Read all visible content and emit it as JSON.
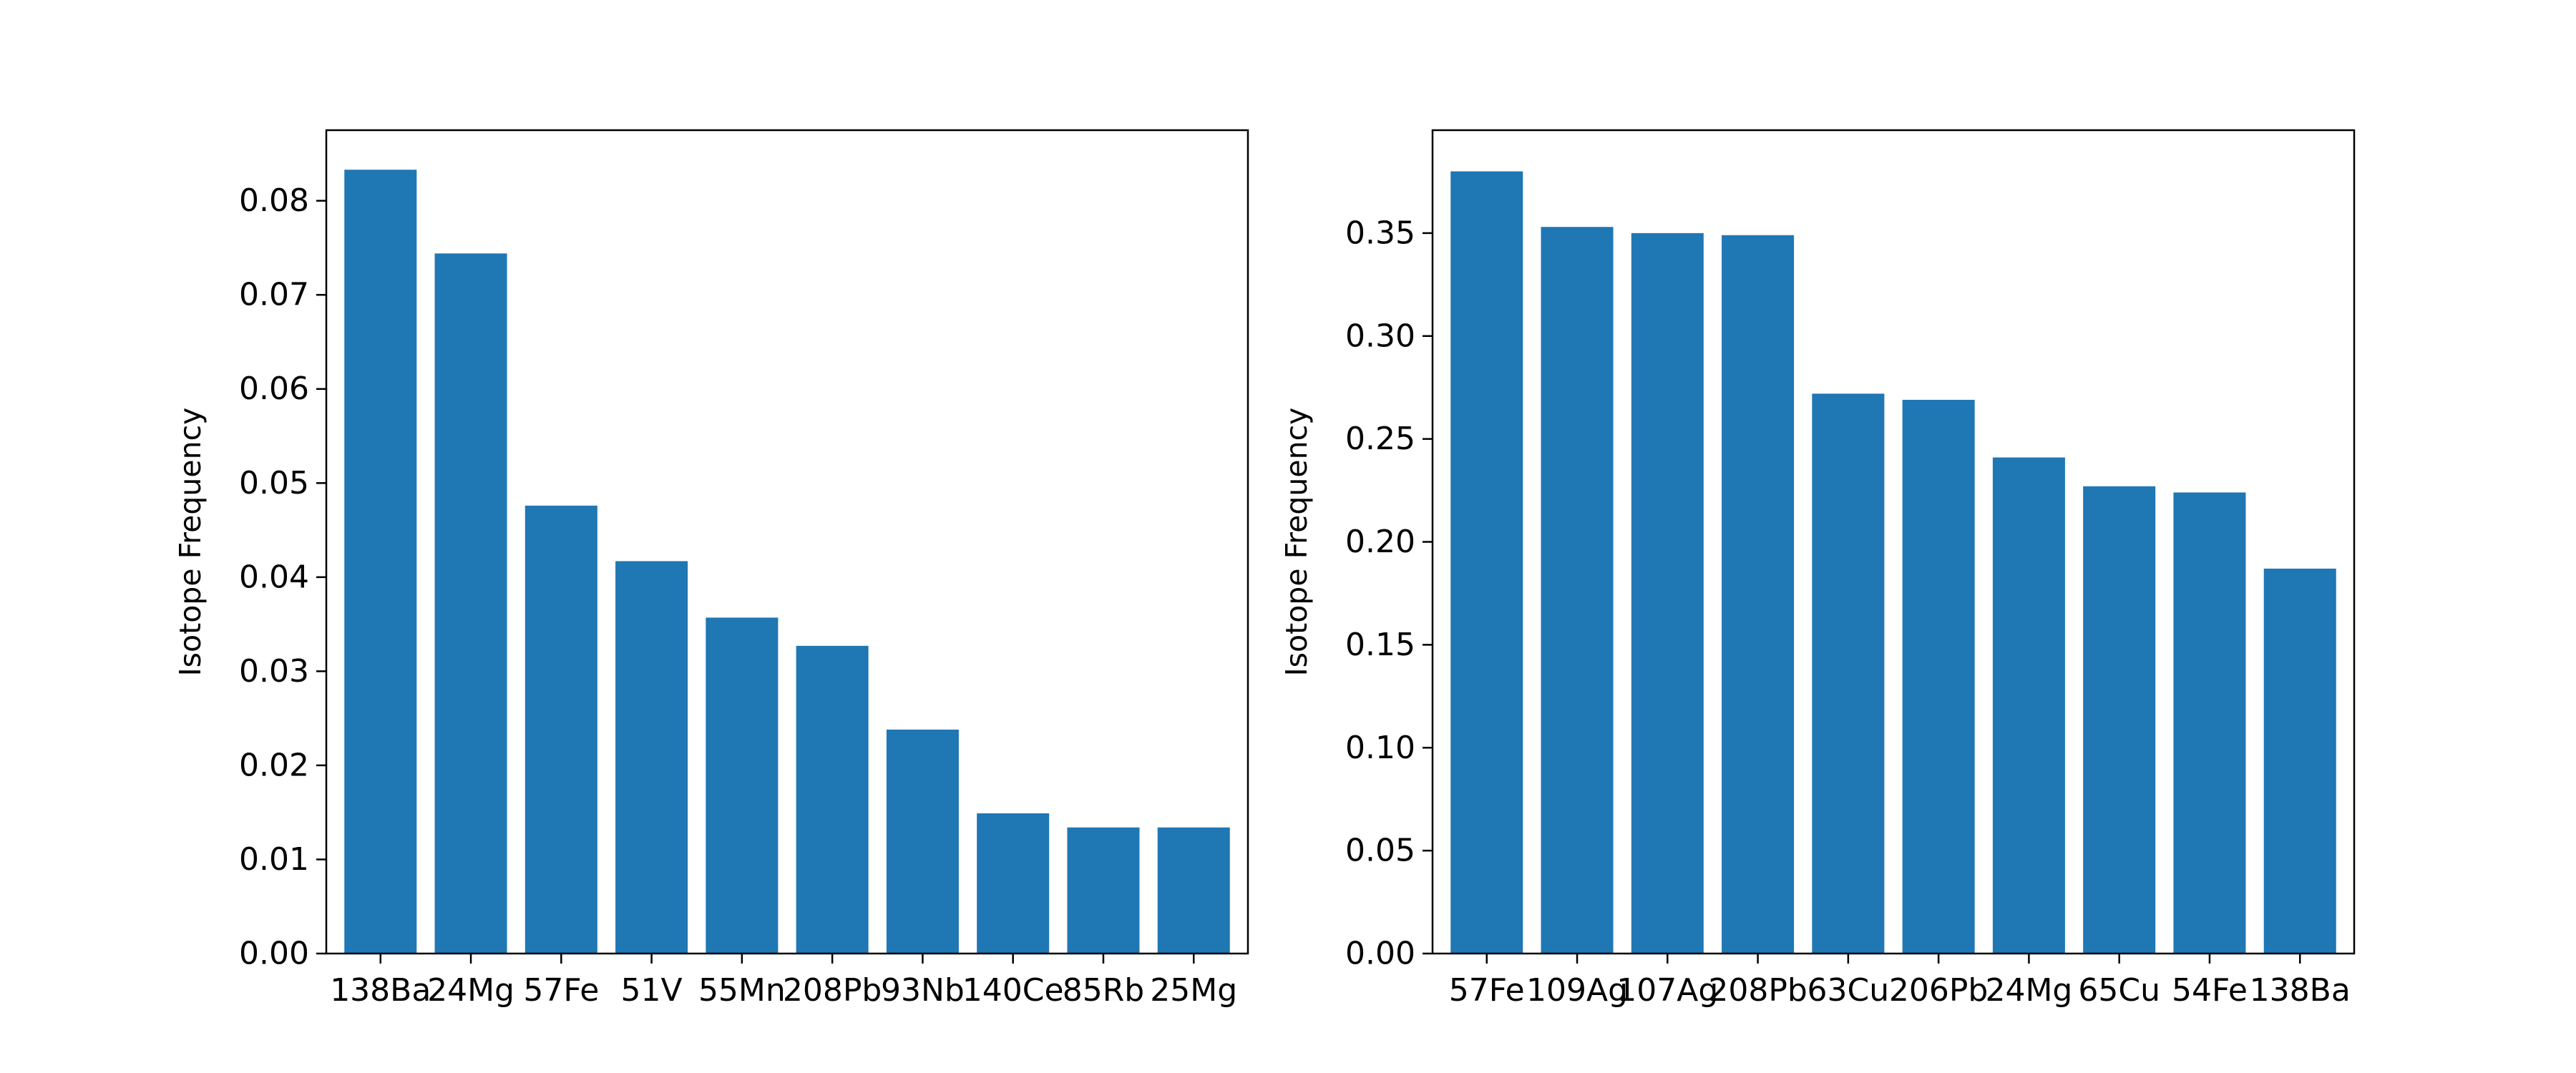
{
  "chart_data": [
    {
      "type": "bar",
      "categories": [
        "138Ba",
        "24Mg",
        "57Fe",
        "51V",
        "55Mn",
        "208Pb",
        "93Nb",
        "140Ce",
        "85Rb",
        "25Mg"
      ],
      "values": [
        0.0833,
        0.0744,
        0.0476,
        0.0417,
        0.0357,
        0.0327,
        0.0238,
        0.0149,
        0.0134,
        0.0134
      ],
      "ylabel": "Isotope Frequency",
      "ylim": [
        0,
        0.0875
      ],
      "yticks": [
        "0.00",
        "0.01",
        "0.02",
        "0.03",
        "0.04",
        "0.05",
        "0.06",
        "0.07",
        "0.08"
      ],
      "color": "#1f77b4",
      "grid": false
    },
    {
      "type": "bar",
      "categories": [
        "57Fe",
        "109Ag",
        "107Ag",
        "208Pb",
        "63Cu",
        "206Pb",
        "24Mg",
        "65Cu",
        "54Fe",
        "138Ba"
      ],
      "values": [
        0.38,
        0.353,
        0.35,
        0.349,
        0.272,
        0.269,
        0.241,
        0.227,
        0.224,
        0.187
      ],
      "ylabel": "Isotope Frequency",
      "ylim": [
        0,
        0.4
      ],
      "yticks": [
        "0.00",
        "0.05",
        "0.10",
        "0.15",
        "0.20",
        "0.25",
        "0.30",
        "0.35"
      ],
      "color": "#1f77b4",
      "grid": false
    }
  ]
}
